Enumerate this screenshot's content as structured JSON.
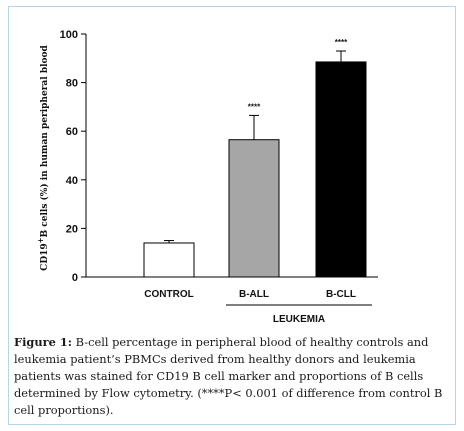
{
  "chart_data": {
    "type": "bar",
    "ylabel": "CD19",
    "ylabel_superscript": "+",
    "ylabel_rest": "B cells (%) in human peripheral blood",
    "xlabel": "",
    "ylim": [
      0,
      100
    ],
    "yticks": [
      "0",
      "20",
      "40",
      "60",
      "80",
      "100"
    ],
    "categories": [
      "CONTROL",
      "B-ALL",
      "B-CLL"
    ],
    "values": [
      14,
      56.5,
      88.5
    ],
    "errors": [
      1,
      10,
      4.5
    ],
    "significance": [
      "",
      "****",
      "****"
    ],
    "bar_colors": [
      "#ffffff",
      "#a6a6a6",
      "#000000"
    ],
    "group_label": "LEUKEMIA",
    "grid": false
  },
  "caption": {
    "label": "Figure 1:",
    "text": " B-cell percentage in peripheral blood of healthy controls and leukemia patient’s PBMCs derived from healthy donors and leukemia patients was stained for CD19 B cell marker and proportions of B cells determined by Flow cytometry. (****P< 0.001 of difference from control B cell proportions)."
  }
}
